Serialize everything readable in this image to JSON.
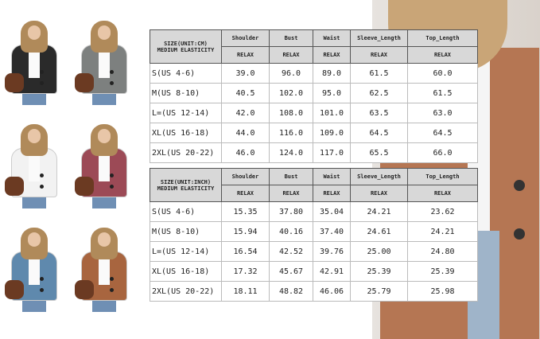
{
  "thumbnails": [
    {
      "color": "#2a2a2a"
    },
    {
      "color": "#7d807f"
    },
    {
      "color": "#f2f2f2"
    },
    {
      "color": "#9c4a56"
    },
    {
      "color": "#5f89ad"
    },
    {
      "color": "#a8653f"
    }
  ],
  "model_jacket_color": "#b57653",
  "tables": [
    {
      "title": "SIZE(UNIT:CM)",
      "subtitle": "MEDIUM ELASTICITY",
      "columns": [
        "Shoulder",
        "Bust",
        "Waist",
        "Sleeve_Length",
        "Top_Length"
      ],
      "sub_label": "RELAX",
      "rows": [
        {
          "size": "S(US 4-6)",
          "values": [
            "39.0",
            "96.0",
            "89.0",
            "61.5",
            "60.0"
          ]
        },
        {
          "size": "M(US 8-10)",
          "values": [
            "40.5",
            "102.0",
            "95.0",
            "62.5",
            "61.5"
          ]
        },
        {
          "size": "L=(US 12-14)",
          "values": [
            "42.0",
            "108.0",
            "101.0",
            "63.5",
            "63.0"
          ]
        },
        {
          "size": "XL(US 16-18)",
          "values": [
            "44.0",
            "116.0",
            "109.0",
            "64.5",
            "64.5"
          ]
        },
        {
          "size": "2XL(US 20-22)",
          "values": [
            "46.0",
            "124.0",
            "117.0",
            "65.5",
            "66.0"
          ]
        }
      ]
    },
    {
      "title": "SIZE(UNIT:INCH)",
      "subtitle": "MEDIUM ELASTICITY",
      "columns": [
        "Shoulder",
        "Bust",
        "Waist",
        "Sleeve_Length",
        "Top_Length"
      ],
      "sub_label": "RELAX",
      "rows": [
        {
          "size": "S(US 4-6)",
          "values": [
            "15.35",
            "37.80",
            "35.04",
            "24.21",
            "23.62"
          ]
        },
        {
          "size": "M(US 8-10)",
          "values": [
            "15.94",
            "40.16",
            "37.40",
            "24.61",
            "24.21"
          ]
        },
        {
          "size": "L=(US 12-14)",
          "values": [
            "16.54",
            "42.52",
            "39.76",
            "25.00",
            "24.80"
          ]
        },
        {
          "size": "XL(US 16-18)",
          "values": [
            "17.32",
            "45.67",
            "42.91",
            "25.39",
            "25.39"
          ]
        },
        {
          "size": "2XL(US 20-22)",
          "values": [
            "18.11",
            "48.82",
            "46.06",
            "25.79",
            "25.98"
          ]
        }
      ]
    }
  ]
}
